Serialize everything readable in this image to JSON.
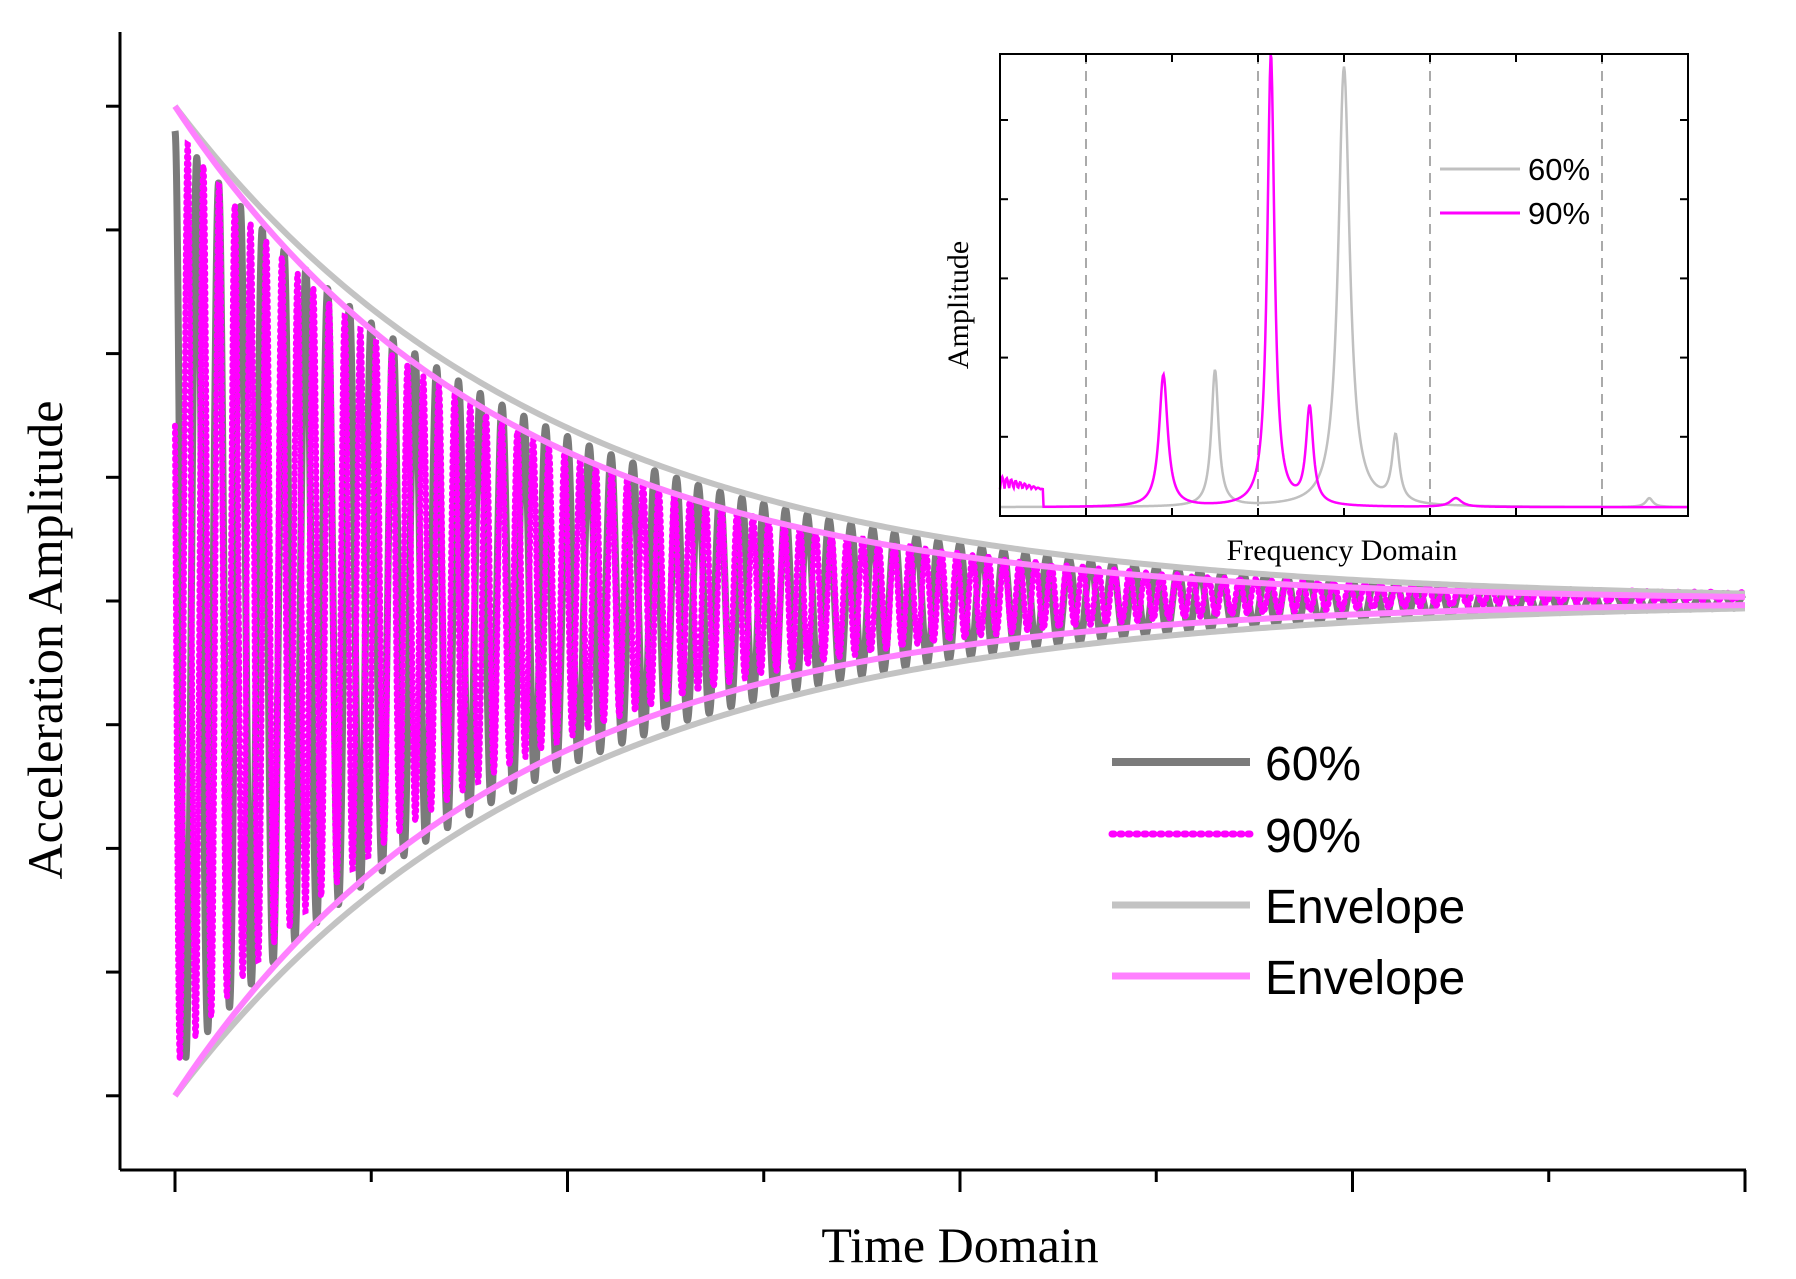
{
  "chart_data": [
    {
      "type": "line",
      "title": "",
      "xlabel": "Time Domain",
      "ylabel": "Acceleration Amplitude",
      "x_tick_labels": [],
      "y_tick_labels": [],
      "xlim": [
        0,
        1
      ],
      "ylim": [
        -1.15,
        1.15
      ],
      "x_major_ticks": [
        0,
        0.25,
        0.5,
        0.75,
        1.0
      ],
      "x_minor_ticks": [
        0.125,
        0.375,
        0.625,
        0.875
      ],
      "y_ticks": [
        -1.0,
        -0.75,
        -0.5,
        -0.25,
        0.0,
        0.25,
        0.5,
        0.75,
        1.0
      ],
      "grid": false,
      "legend_position": "lower-right",
      "series": [
        {
          "name": "60%",
          "kind": "damped-oscillation",
          "color": "#7b7b7b",
          "style": "solid",
          "amplitude": 0.95,
          "decay_rate": 4.2,
          "cycles": 72,
          "phase": 0.0,
          "offset": 0.0
        },
        {
          "name": "90%",
          "kind": "damped-oscillation",
          "color": "#ff00ff",
          "style": "dotted",
          "amplitude": 0.95,
          "decay_rate": 4.8,
          "cycles": 100,
          "phase": 1.2,
          "offset": 0.01
        },
        {
          "name": "Envelope",
          "kind": "envelope",
          "color": "#c3c3c3",
          "style": "solid",
          "amplitude": 1.0,
          "decay_rate": 4.2
        },
        {
          "name": "Envelope",
          "kind": "envelope",
          "color": "#ff80ff",
          "style": "solid",
          "amplitude": 1.0,
          "decay_rate": 4.8
        }
      ]
    },
    {
      "type": "line",
      "title": "",
      "xlabel": "Frequency Domain",
      "ylabel": "Amplitude",
      "x_tick_labels": [],
      "y_tick_labels": [],
      "xlim": [
        0,
        8
      ],
      "ylim": [
        0,
        1.05
      ],
      "x_ticks": [
        1,
        2,
        3,
        4,
        5,
        6,
        7
      ],
      "y_ticks": [
        0.18,
        0.36,
        0.54,
        0.72,
        0.9
      ],
      "dashed_vlines": [
        1,
        3,
        5,
        7
      ],
      "legend_position": "top-right",
      "series": [
        {
          "name": "60%",
          "color": "#c0c0c0",
          "baseline": 0.02,
          "peaks": [
            [
              2.5,
              0.31,
              0.05
            ],
            [
              4.0,
              1.0,
              0.08
            ],
            [
              4.6,
              0.15,
              0.05
            ],
            [
              7.55,
              0.02,
              0.05
            ]
          ]
        },
        {
          "name": "90%",
          "color": "#ff00ff",
          "baseline": 0.02,
          "peaks": [
            [
              1.9,
              0.3,
              0.06
            ],
            [
              3.15,
              1.03,
              0.05
            ],
            [
              3.6,
              0.22,
              0.05
            ],
            [
              5.3,
              0.02,
              0.08
            ]
          ],
          "noise_low_freq": true
        }
      ]
    }
  ]
}
